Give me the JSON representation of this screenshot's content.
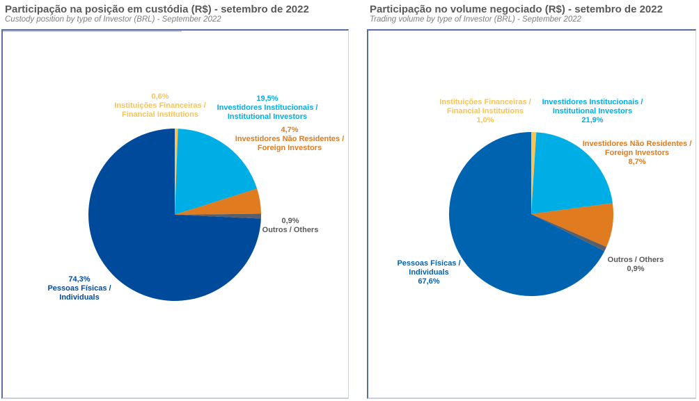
{
  "colors": {
    "individuals_left": "#004a9c",
    "individuals_right": "#0063b0",
    "financial": "#f8c357",
    "institutional": "#00aee6",
    "foreign": "#e07b1f",
    "others": "#5b6068"
  },
  "chart_data": [
    {
      "type": "pie",
      "title": "Participação na posição em custódia (R$) - setembro de 2022",
      "subtitle": "Custody position by type of Investor (BRL) - September 2022",
      "slices": [
        {
          "key": "financial",
          "pct_label": "0,6%",
          "line1": "Instituições Financeiras /",
          "line2": "Financial Institutions",
          "value": 0.6
        },
        {
          "key": "institutional",
          "pct_label": "19,5%",
          "line1": "Investidores Institucionais /",
          "line2": "Institutional Investors",
          "value": 19.5
        },
        {
          "key": "foreign",
          "pct_label": "4,7%",
          "line1": "Investidores Não Residentes /",
          "line2": "Foreign Investors",
          "value": 4.7
        },
        {
          "key": "others",
          "pct_label": "0,9%",
          "line1": "Outros / Others",
          "value": 0.9
        },
        {
          "key": "individuals",
          "pct_label": "74,3%",
          "line1": "Pessoas Físicas /",
          "line2": "Individuals",
          "value": 74.3
        }
      ]
    },
    {
      "type": "pie",
      "title": "Participação no volume negociado (R$) - setembro de 2022",
      "subtitle": "Trading volume by type of Investor (BRL) - September 2022",
      "slices": [
        {
          "key": "financial",
          "pct_label": "1,0%",
          "line1": "Instituições Financeiras /",
          "line2": "Financial Institutions",
          "value": 1.0
        },
        {
          "key": "institutional",
          "pct_label": "21,9%",
          "line1": "Investidores Institucionais /",
          "line2": "Institutional Investors",
          "value": 21.9
        },
        {
          "key": "foreign",
          "pct_label": "8,7%",
          "line1": "Investidores Não Residentes /",
          "line2": "Foreign Investors",
          "value": 8.7
        },
        {
          "key": "others",
          "pct_label": "0,9%",
          "line1": "Outros / Others",
          "value": 0.9
        },
        {
          "key": "individuals",
          "pct_label": "67,6%",
          "line1": "Pessoas Físicas /",
          "line2": "Individuals",
          "value": 67.6
        }
      ]
    }
  ]
}
